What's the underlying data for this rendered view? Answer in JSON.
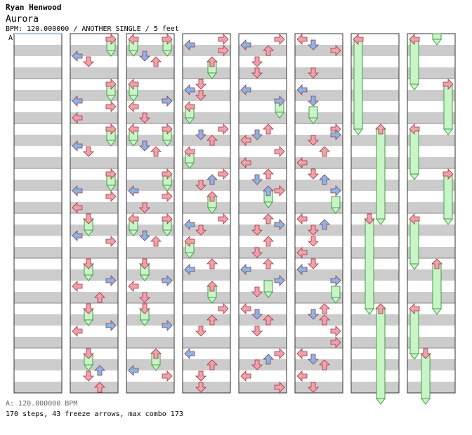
{
  "header": {
    "artist": "Ryan Henwood",
    "title": "Aurora",
    "info": "BPM: 120.000000 / ANOTHER SINGLE / 5 feet"
  },
  "marker_label": "A",
  "footer": {
    "bpm_line": "A: 120.000000 BPM",
    "stats_line": "170 steps, 43 freeze arrows, max combo 173"
  },
  "colors": {
    "quarter_note": "#f4a0a8",
    "eighth_note": "#80b8f0",
    "freeze_body": "#c8f4c8",
    "freeze_outline": "#40a040",
    "stripe": "#cccccc"
  },
  "chart_data": {
    "type": "step-chart",
    "columns": 8,
    "lanes": [
      "left",
      "down",
      "up",
      "right"
    ],
    "measures_per_column": 8
  }
}
